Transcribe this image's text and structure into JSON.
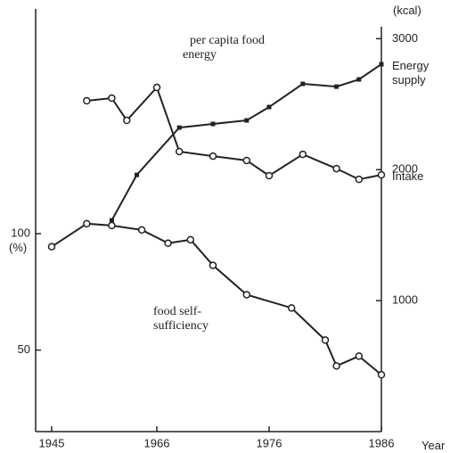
{
  "chart_data": {
    "type": "line",
    "annotation": "per capita food energy",
    "xlabel": "Year",
    "ylabel": "(%)",
    "y2label": "(kcal)",
    "xlim": [
      1942,
      1986
    ],
    "xticks": [
      1945,
      1966,
      1976,
      1986
    ],
    "ylim": [
      15,
      195
    ],
    "yticks": [
      50,
      100
    ],
    "y2lim": [
      0,
      3200
    ],
    "y2ticks": [
      1000,
      2000,
      3000
    ],
    "series": [
      {
        "name": "Energy supply",
        "color": "#222222",
        "axis": "y2",
        "marker": "square",
        "x": [
          1957,
          1962,
          1968,
          1971,
          1974,
          1976,
          1979,
          1982,
          1984,
          1986
        ],
        "values": [
          1613,
          1960,
          2321,
          2349,
          2376,
          2478,
          2655,
          2634,
          2689,
          2805
        ]
      },
      {
        "name": "Intake",
        "color": "#222222",
        "axis": "y2",
        "marker": "circle",
        "x": [
          1952,
          1957,
          1960,
          1966,
          1968,
          1971,
          1974,
          1976,
          1979,
          1982,
          1984,
          1986
        ],
        "values": [
          2526,
          2546,
          2376,
          2628,
          2138,
          2103,
          2070,
          1954,
          2117,
          2008,
          1926,
          1960
        ]
      },
      {
        "name": "food self-sufficiency",
        "color": "#222222",
        "axis": "y",
        "marker": "circle",
        "x": [
          1945,
          1952,
          1957,
          1963,
          1967,
          1969,
          1971,
          1974,
          1978,
          1981,
          1982,
          1984,
          1986
        ],
        "values": [
          94.4,
          104.3,
          103.5,
          101.6,
          95.9,
          97.4,
          86.4,
          73.8,
          68.1,
          54.3,
          43.2,
          47.4,
          39.4
        ]
      }
    ]
  }
}
